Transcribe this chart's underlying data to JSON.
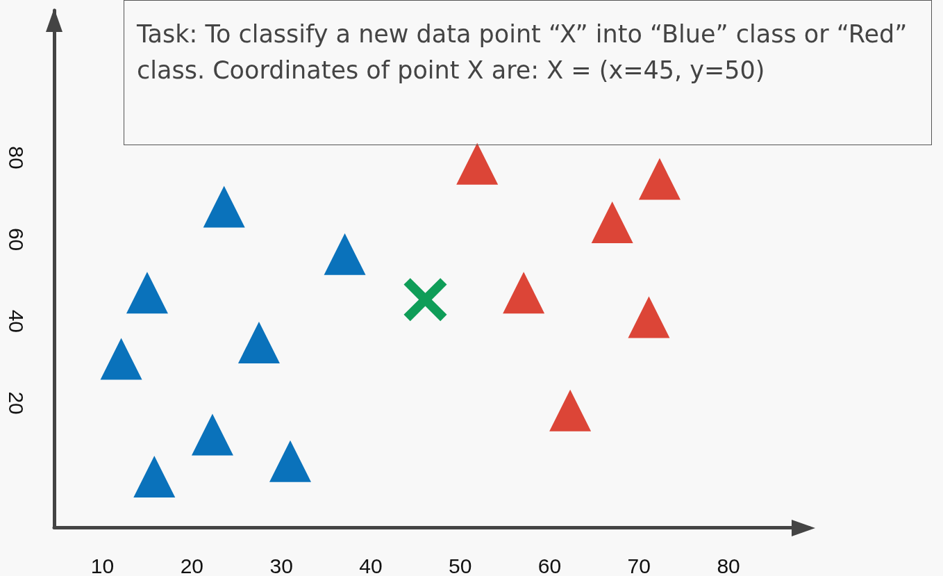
{
  "chart_data": {
    "type": "scatter",
    "annotations": [
      "Task: To classify a new data point “X” into “Blue” class or “Red” class. Coordinates of point X are: X = (x=45, y=50)"
    ],
    "xlim": [
      4.6,
      89
    ],
    "ylim": [
      -10.4,
      116
    ],
    "xticks": [
      10,
      20,
      30,
      40,
      50,
      60,
      70,
      80
    ],
    "yticks": [
      20,
      40,
      60,
      80
    ],
    "grid": false,
    "series": [
      {
        "color": "#0a72bb",
        "marker": "triangle",
        "x": [
          23.6,
          37.1,
          15,
          27.5,
          12.1,
          22.3,
          31,
          15.8
        ],
        "values": [
          68,
          56.4,
          47,
          34.8,
          30.8,
          12.3,
          5.8,
          2
        ]
      },
      {
        "color": "#dc4537",
        "marker": "triangle",
        "x": [
          51.9,
          72.3,
          67,
          57.1,
          71.1,
          62.3
        ],
        "values": [
          78.5,
          74.8,
          64.2,
          47,
          41,
          18.2
        ]
      },
      {
        "color": "#0f9d58",
        "marker": "cross",
        "x": [
          46.1
        ],
        "values": [
          45.3
        ]
      }
    ]
  }
}
